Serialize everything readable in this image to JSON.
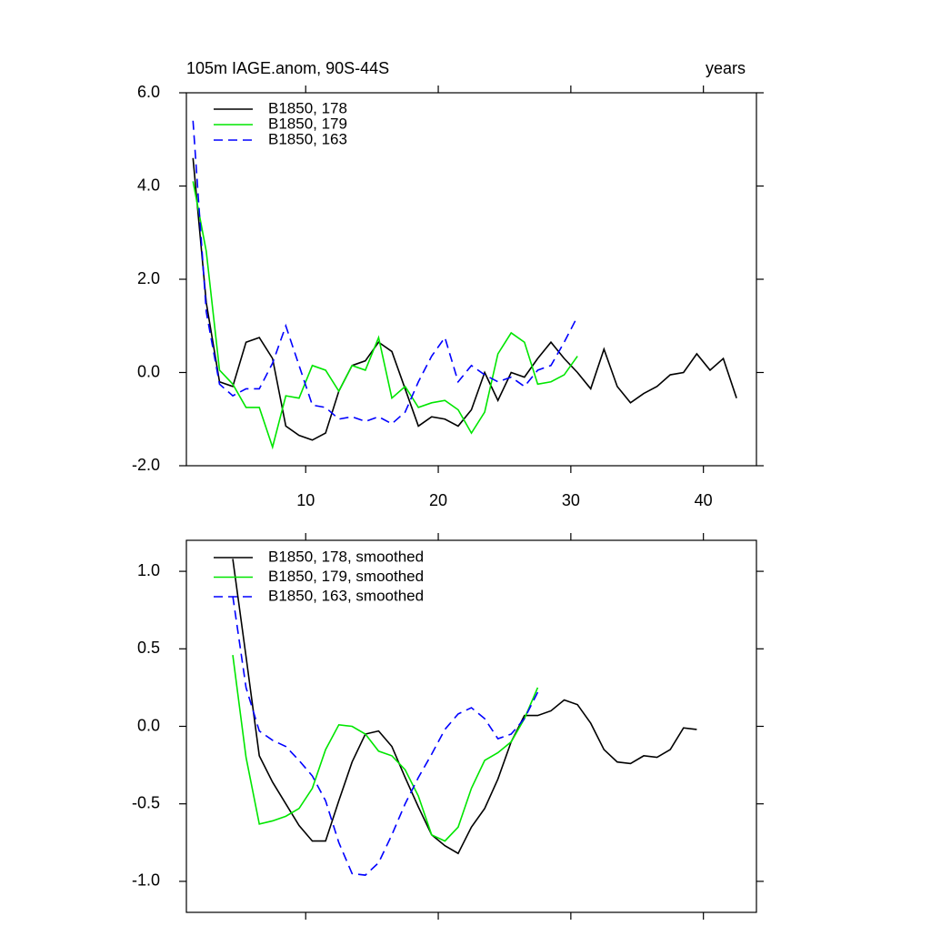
{
  "chart_data": [
    {
      "type": "line",
      "title": "105m IAGE.anom, 90S-44S",
      "right_title": "years",
      "x": [
        1.5,
        2.5,
        3.5,
        4.5,
        5.5,
        6.5,
        7.5,
        8.5,
        9.5,
        10.5,
        11.5,
        12.5,
        13.5,
        14.5,
        15.5,
        16.5,
        17.5,
        18.5,
        19.5,
        20.5,
        21.5,
        22.5,
        23.5,
        24.5,
        25.5,
        26.5,
        27.5,
        28.5,
        29.5,
        30.5,
        31.5,
        32.5,
        33.5,
        34.5,
        35.5,
        36.5,
        37.5,
        38.5,
        39.5,
        40.5,
        41.5,
        42.5
      ],
      "xlim": [
        1,
        44
      ],
      "xticks": [
        10,
        20,
        30,
        40
      ],
      "ylim": [
        -2,
        6
      ],
      "yticks": [
        {
          "value": -2,
          "label": "-2.0"
        },
        {
          "value": 0,
          "label": "0.0"
        },
        {
          "value": 2,
          "label": "2.0"
        },
        {
          "value": 4,
          "label": "4.0"
        },
        {
          "value": 6,
          "label": "6.0"
        }
      ],
      "legend": "top-left",
      "series": [
        {
          "name": "B1850, 178",
          "color": "#000000",
          "dashed": false,
          "values": [
            4.6,
            1.5,
            -0.2,
            -0.3,
            0.65,
            0.75,
            0.3,
            -1.15,
            -1.35,
            -1.45,
            -1.3,
            -0.4,
            0.15,
            0.25,
            0.65,
            0.45,
            -0.35,
            -1.15,
            -0.95,
            -1.0,
            -1.15,
            -0.8,
            0.0,
            -0.6,
            0.0,
            -0.1,
            0.3,
            0.65,
            0.3,
            0.0,
            -0.35,
            0.5,
            -0.3,
            -0.65,
            -0.45,
            -0.3,
            -0.05,
            0.0,
            0.4,
            0.05,
            0.3,
            -0.55
          ]
        },
        {
          "name": "B1850, 179",
          "color": "#00e600",
          "dashed": false,
          "values": [
            4.1,
            2.6,
            0.05,
            -0.25,
            -0.75,
            -0.75,
            -1.6,
            -0.5,
            -0.55,
            0.15,
            0.05,
            -0.4,
            0.15,
            0.05,
            0.75,
            -0.55,
            -0.3,
            -0.75,
            -0.65,
            -0.6,
            -0.8,
            -1.3,
            -0.85,
            0.4,
            0.85,
            0.65,
            -0.25,
            -0.2,
            -0.05,
            0.35,
            null,
            null,
            null,
            null,
            null,
            null,
            null,
            null,
            null,
            null,
            null,
            null
          ]
        },
        {
          "name": "B1850, 163",
          "color": "#0000ff",
          "dashed": true,
          "values": [
            5.4,
            1.3,
            -0.25,
            -0.5,
            -0.35,
            -0.35,
            0.2,
            1.0,
            0.15,
            -0.7,
            -0.75,
            -1.0,
            -0.95,
            -1.05,
            -0.95,
            -1.1,
            -0.85,
            -0.2,
            0.35,
            0.75,
            -0.2,
            0.15,
            -0.05,
            -0.2,
            -0.1,
            -0.3,
            0.05,
            0.15,
            0.65,
            1.2,
            null,
            null,
            null,
            null,
            null,
            null,
            null,
            null,
            null,
            null,
            null,
            null
          ]
        }
      ]
    },
    {
      "type": "line",
      "x": [
        4.5,
        5.5,
        6.5,
        7.5,
        8.5,
        9.5,
        10.5,
        11.5,
        12.5,
        13.5,
        14.5,
        15.5,
        16.5,
        17.5,
        18.5,
        19.5,
        20.5,
        21.5,
        22.5,
        23.5,
        24.5,
        25.5,
        26.5,
        27.5,
        28.5,
        29.5,
        30.5,
        31.5,
        32.5,
        33.5,
        34.5,
        35.5,
        36.5,
        37.5,
        38.5,
        39.5
      ],
      "xlim": [
        1,
        44
      ],
      "xticks": [
        10,
        20,
        30,
        40
      ],
      "ylim": [
        -1.2,
        1.2
      ],
      "yticks": [
        {
          "value": -1,
          "label": "-1.0"
        },
        {
          "value": -0.5,
          "label": "-0.5"
        },
        {
          "value": 0,
          "label": "0.0"
        },
        {
          "value": 0.5,
          "label": "0.5"
        },
        {
          "value": 1,
          "label": "1.0"
        }
      ],
      "legend": "top-left",
      "series": [
        {
          "name": "B1850, 178, smoothed",
          "color": "#000000",
          "dashed": false,
          "values": [
            1.08,
            0.45,
            -0.19,
            -0.36,
            -0.5,
            -0.64,
            -0.74,
            -0.74,
            -0.48,
            -0.23,
            -0.05,
            -0.03,
            -0.13,
            -0.33,
            -0.52,
            -0.7,
            -0.77,
            -0.82,
            -0.65,
            -0.53,
            -0.34,
            -0.1,
            0.07,
            0.07,
            0.1,
            0.17,
            0.14,
            0.02,
            -0.15,
            -0.23,
            -0.24,
            -0.19,
            -0.2,
            -0.15,
            -0.01,
            -0.02
          ]
        },
        {
          "name": "B1850, 179, smoothed",
          "color": "#00e600",
          "dashed": false,
          "values": [
            0.46,
            -0.2,
            -0.63,
            -0.61,
            -0.58,
            -0.53,
            -0.4,
            -0.15,
            0.01,
            0.0,
            -0.05,
            -0.16,
            -0.19,
            -0.28,
            -0.45,
            -0.7,
            -0.74,
            -0.65,
            -0.4,
            -0.22,
            -0.17,
            -0.1,
            0.05,
            0.25,
            null,
            null,
            null,
            null,
            null,
            null,
            null,
            null,
            null,
            null,
            null,
            null
          ]
        },
        {
          "name": "B1850, 163, smoothed",
          "color": "#0000ff",
          "dashed": true,
          "values": [
            0.84,
            0.25,
            -0.03,
            -0.09,
            -0.13,
            -0.22,
            -0.32,
            -0.48,
            -0.75,
            -0.95,
            -0.96,
            -0.88,
            -0.7,
            -0.5,
            -0.33,
            -0.18,
            -0.02,
            0.08,
            0.12,
            0.05,
            -0.08,
            -0.05,
            0.05,
            0.22,
            null,
            null,
            null,
            null,
            null,
            null,
            null,
            null,
            null,
            null,
            null,
            null
          ]
        }
      ]
    }
  ]
}
